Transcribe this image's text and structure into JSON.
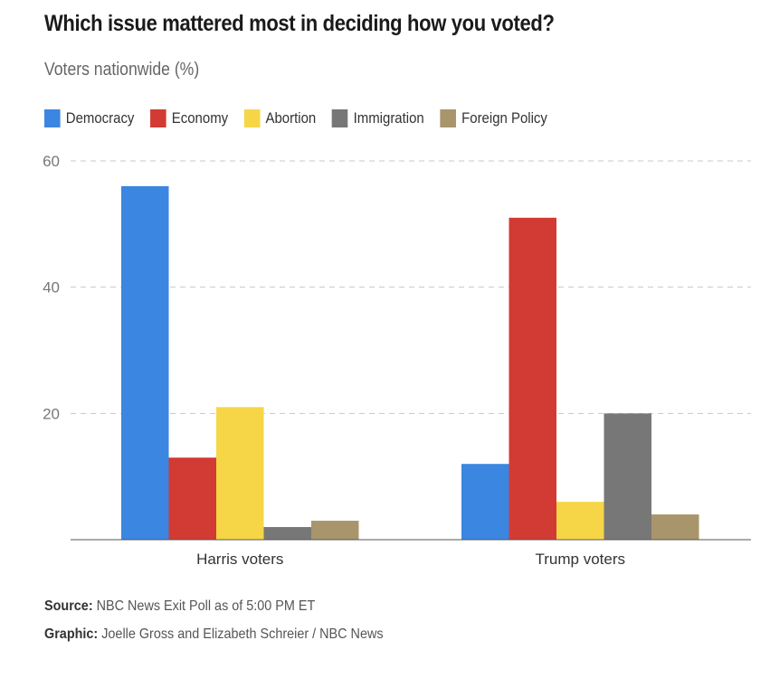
{
  "title": "Which issue mattered most in deciding how you voted?",
  "subtitle": "Voters nationwide (%)",
  "colors": {
    "Democracy": "#3b86e0",
    "Economy": "#d23b33",
    "Abortion": "#f6d647",
    "Immigration": "#777777",
    "Foreign Policy": "#a8956b"
  },
  "chart_data": {
    "type": "bar",
    "title": "Which issue mattered most in deciding how you voted?",
    "subtitle": "Voters nationwide (%)",
    "categories": [
      "Harris voters",
      "Trump voters"
    ],
    "series": [
      {
        "name": "Democracy",
        "values": [
          56,
          12
        ]
      },
      {
        "name": "Economy",
        "values": [
          13,
          51
        ]
      },
      {
        "name": "Abortion",
        "values": [
          21,
          6
        ]
      },
      {
        "name": "Immigration",
        "values": [
          2,
          20
        ]
      },
      {
        "name": "Foreign Policy",
        "values": [
          3,
          4
        ]
      }
    ],
    "yticks": [
      20,
      40,
      60
    ],
    "ylim": [
      0,
      60
    ],
    "grid": true,
    "legend": "top-left"
  },
  "footer": {
    "source_label": "Source:",
    "source_text": "NBC News Exit Poll as of 5:00 PM ET",
    "graphic_label": "Graphic:",
    "graphic_text": "Joelle Gross and Elizabeth Schreier / NBC News"
  }
}
